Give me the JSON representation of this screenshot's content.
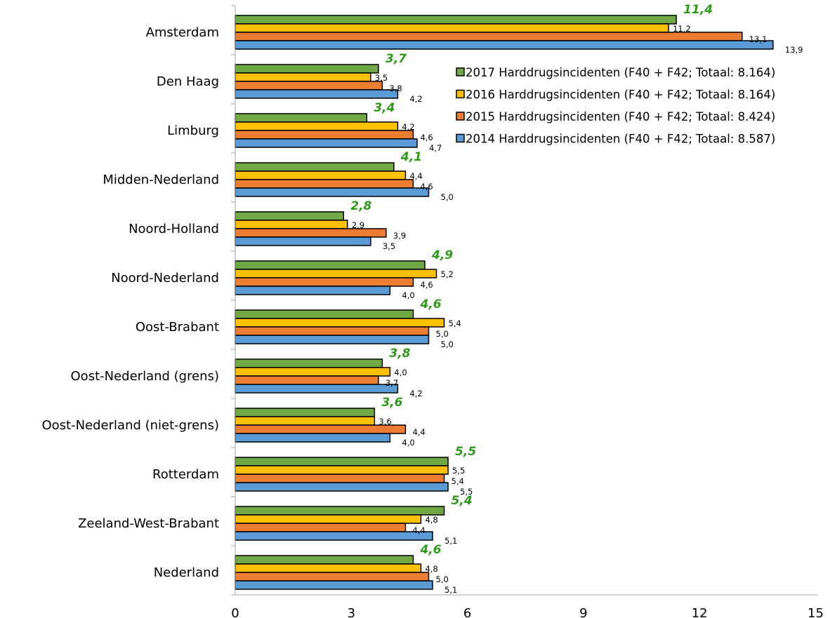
{
  "chart_data": {
    "type": "bar",
    "orientation": "horizontal",
    "title": "",
    "xlabel": "",
    "ylabel": "",
    "xlim": [
      0,
      15
    ],
    "x_ticks": [
      "0",
      "3",
      "6",
      "9",
      "12",
      "15"
    ],
    "grid": false,
    "legend_position": "top-right",
    "categories": [
      "Amsterdam",
      "Den Haag",
      "Limburg",
      "Midden-Nederland",
      "Noord-Holland",
      "Noord-Nederland",
      "Oost-Brabant",
      "Oost-Nederland (grens)",
      "Oost-Nederland (niet-grens)",
      "Rotterdam",
      "Zeeland-West-Brabant",
      "Nederland"
    ],
    "series": [
      {
        "name": "2017  Harddrugsincidenten (F40 + F42; Totaal: 8.164)",
        "color": "#70a845",
        "label_color": "#2e9a1a",
        "label_style": "bold-italic",
        "values": [
          11.4,
          3.7,
          3.4,
          4.1,
          2.8,
          4.9,
          4.6,
          3.8,
          3.6,
          5.5,
          5.4,
          4.6
        ],
        "labels": [
          "11,4",
          "3,7",
          "3,4",
          "4,1",
          "2,8",
          "4,9",
          "4,6",
          "3,8",
          "3,6",
          "5,5",
          "5,4",
          "4,6"
        ]
      },
      {
        "name": "2016  Harddrugsincidenten (F40 + F42; Totaal: 8.164)",
        "color": "#ffc000",
        "label_color": "#000000",
        "label_style": "normal",
        "values": [
          11.2,
          3.5,
          4.2,
          4.4,
          2.9,
          5.2,
          5.4,
          4.0,
          3.6,
          5.5,
          4.8,
          4.8
        ],
        "labels": [
          "11,2",
          "3,5",
          "4,2",
          "4,4",
          "2,9",
          "5,2",
          "5,4",
          "4,0",
          "3,6",
          "5,5",
          "4,8",
          "4,8"
        ]
      },
      {
        "name": "2015  Harddrugsincidenten (F40 + F42; Totaal: 8.424)",
        "color": "#ed7d31",
        "label_color": "#000000",
        "label_style": "normal",
        "values": [
          13.1,
          3.8,
          4.6,
          4.6,
          3.9,
          4.6,
          5.0,
          3.7,
          4.4,
          5.4,
          4.4,
          5.0
        ],
        "labels": [
          "13,1",
          "3,8",
          "4,6",
          "4,6",
          "3,9",
          "4,6",
          "5,0",
          "3,7",
          "4,4",
          "5,4",
          "4,4",
          "5,0"
        ]
      },
      {
        "name": "2014  Harddrugsincidenten (F40 + F42; Totaal: 8.587)",
        "color": "#5b9bd5",
        "label_color": "#000000",
        "label_style": "normal",
        "values": [
          13.9,
          4.2,
          4.7,
          5.0,
          3.5,
          4.0,
          5.0,
          4.2,
          4.0,
          5.5,
          5.1,
          5.1
        ],
        "labels": [
          "13,9",
          "4,2",
          "4,7",
          "5,0",
          "3,5",
          "4,0",
          "5,0",
          "4,2",
          "4,0",
          "5,5",
          "5,1",
          "5,1"
        ]
      }
    ]
  }
}
